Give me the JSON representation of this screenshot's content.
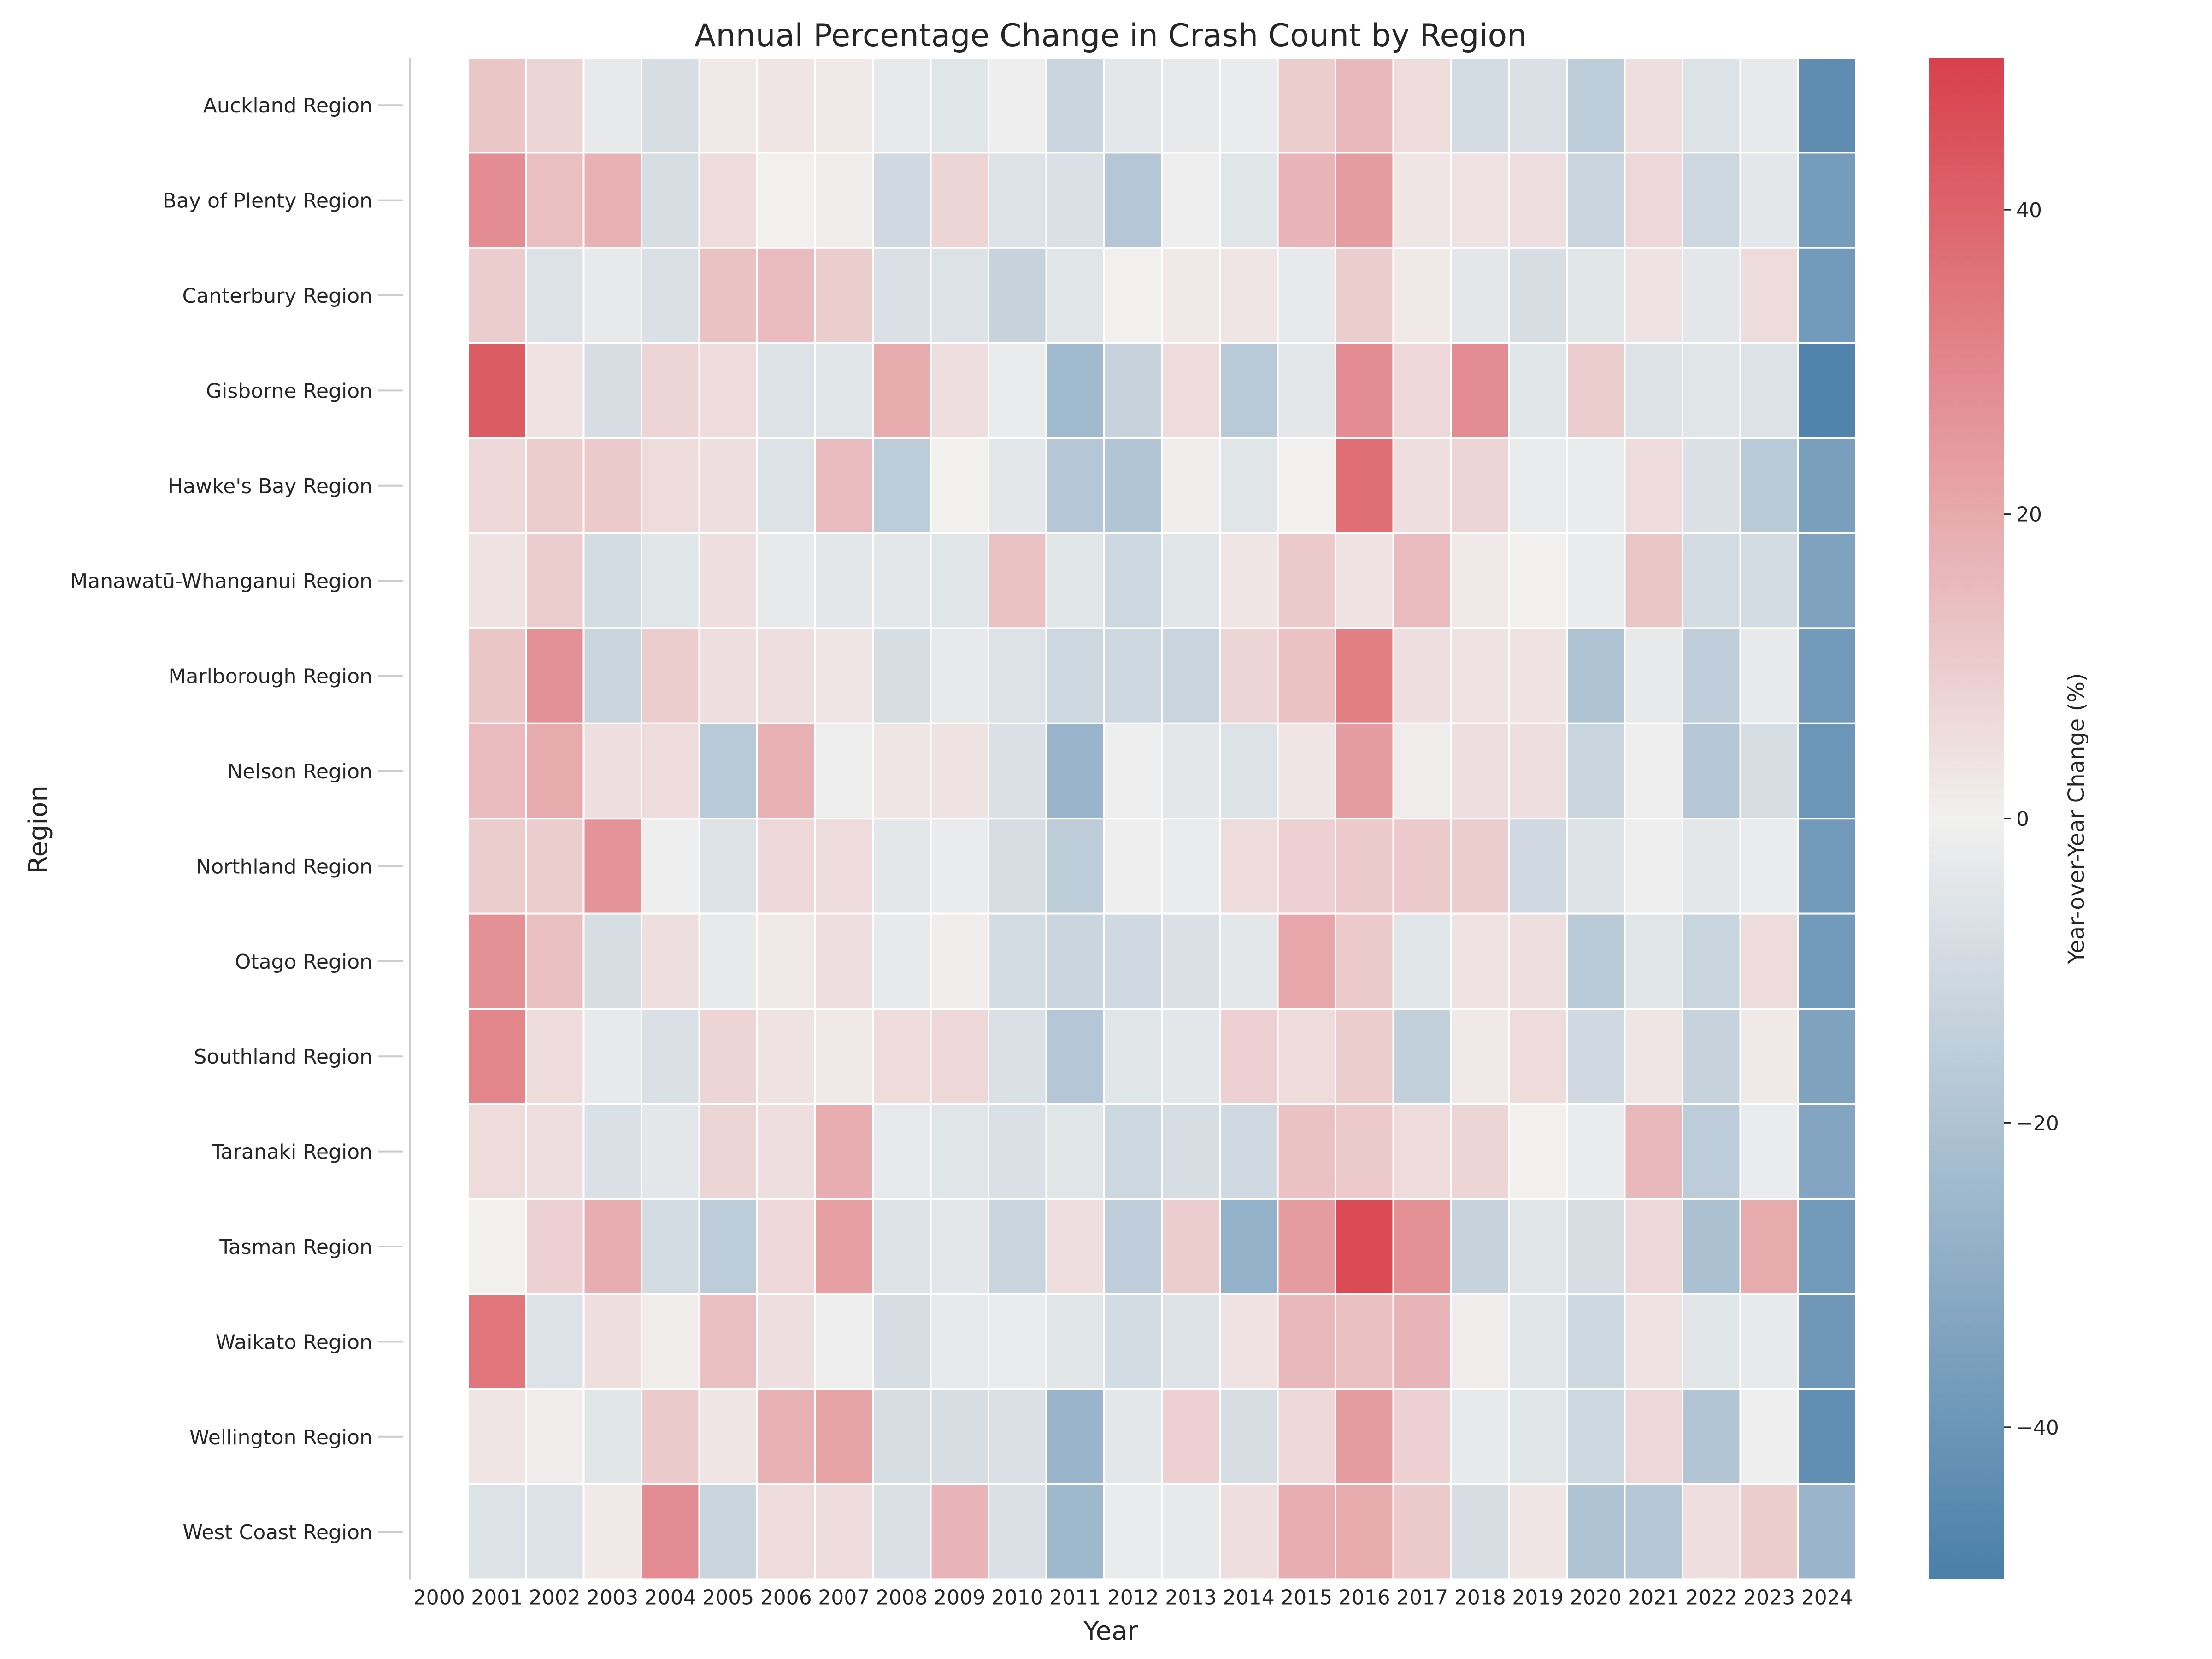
{
  "chart_data": {
    "type": "heatmap",
    "title": "Annual Percentage Change in Crash Count by Region",
    "xlabel": "Year",
    "ylabel": "Region",
    "x": [
      "2000",
      "2001",
      "2002",
      "2003",
      "2004",
      "2005",
      "2006",
      "2007",
      "2008",
      "2009",
      "2010",
      "2011",
      "2012",
      "2013",
      "2014",
      "2015",
      "2016",
      "2017",
      "2018",
      "2019",
      "2020",
      "2021",
      "2022",
      "2023",
      "2024"
    ],
    "y": [
      "Auckland Region",
      "Bay of Plenty Region",
      "Canterbury Region",
      "Gisborne Region",
      "Hawke's Bay Region",
      "Manawatū-Whanganui Region",
      "Marlborough Region",
      "Nelson Region",
      "Northland Region",
      "Otago Region",
      "Southland Region",
      "Taranaki Region",
      "Tasman Region",
      "Waikato Region",
      "Wellington Region",
      "West Coast Region"
    ],
    "values": [
      [
        null,
        12,
        8,
        -3,
        -8,
        2,
        3,
        2,
        -3,
        -5,
        -1,
        -12,
        -4,
        -3,
        -2,
        10,
        16,
        6,
        -9,
        -7,
        -16,
        5,
        -6,
        -3,
        -44
      ],
      [
        null,
        28,
        14,
        18,
        -8,
        6,
        0,
        1,
        -10,
        8,
        -6,
        -7,
        -18,
        -1,
        -5,
        17,
        24,
        3,
        4,
        5,
        -12,
        7,
        -11,
        -4,
        -37
      ],
      [
        null,
        10,
        -6,
        -3,
        -7,
        13,
        15,
        10,
        -7,
        -6,
        -13,
        -5,
        0,
        2,
        3,
        -3,
        10,
        2,
        -4,
        -8,
        -5,
        4,
        -4,
        6,
        -38
      ],
      [
        null,
        42,
        4,
        -8,
        8,
        6,
        -6,
        -5,
        20,
        5,
        -2,
        -24,
        -13,
        6,
        -17,
        -4,
        28,
        7,
        28,
        -5,
        10,
        -6,
        -5,
        -6,
        -48
      ],
      [
        null,
        7,
        10,
        11,
        6,
        5,
        -6,
        15,
        -16,
        0,
        -4,
        -18,
        -19,
        1,
        -5,
        0,
        37,
        5,
        8,
        -2,
        -2,
        6,
        -7,
        -17,
        -36
      ],
      [
        null,
        4,
        10,
        -9,
        -5,
        5,
        -3,
        -4,
        -4,
        -5,
        13,
        -5,
        -11,
        -5,
        3,
        11,
        4,
        15,
        2,
        0,
        -2,
        12,
        -9,
        -9,
        -34
      ],
      [
        null,
        12,
        27,
        -12,
        10,
        5,
        5,
        3,
        -8,
        -3,
        -6,
        -11,
        -11,
        -12,
        8,
        13,
        32,
        5,
        4,
        4,
        -20,
        -3,
        -15,
        -3,
        -38
      ],
      [
        null,
        15,
        20,
        5,
        6,
        -17,
        18,
        -1,
        3,
        4,
        -7,
        -26,
        -1,
        -4,
        -6,
        3,
        24,
        1,
        5,
        5,
        -12,
        -1,
        -18,
        -8,
        -40
      ],
      [
        null,
        10,
        10,
        26,
        -1,
        -6,
        7,
        6,
        -4,
        -2,
        -8,
        -16,
        -1,
        -2,
        6,
        9,
        11,
        11,
        10,
        -10,
        -6,
        -1,
        -4,
        -2,
        -38
      ],
      [
        null,
        27,
        14,
        -8,
        5,
        -3,
        2,
        5,
        -3,
        1,
        -9,
        -12,
        -10,
        -7,
        -4,
        21,
        11,
        -5,
        4,
        5,
        -17,
        -5,
        -12,
        6,
        -38
      ],
      [
        null,
        30,
        6,
        -3,
        -7,
        8,
        4,
        2,
        6,
        7,
        -7,
        -18,
        -5,
        -4,
        9,
        6,
        10,
        -14,
        2,
        6,
        -10,
        3,
        -13,
        2,
        -34
      ],
      [
        null,
        6,
        5,
        -7,
        -4,
        8,
        5,
        19,
        -3,
        -5,
        -7,
        -5,
        -11,
        -8,
        -10,
        13,
        11,
        6,
        8,
        0,
        -2,
        16,
        -16,
        -2,
        -33
      ],
      [
        null,
        0,
        9,
        19,
        -9,
        -16,
        7,
        23,
        -6,
        -4,
        -12,
        5,
        -15,
        10,
        -28,
        24,
        47,
        27,
        -13,
        -5,
        -8,
        7,
        -21,
        20,
        -38
      ],
      [
        null,
        35,
        -6,
        5,
        1,
        14,
        5,
        -1,
        -8,
        -3,
        -2,
        -5,
        -9,
        -6,
        4,
        16,
        14,
        17,
        1,
        -5,
        -11,
        4,
        -5,
        -3,
        -39
      ],
      [
        null,
        3,
        1,
        -5,
        11,
        3,
        18,
        22,
        -8,
        -8,
        -7,
        -26,
        -4,
        9,
        -8,
        7,
        24,
        9,
        -3,
        -5,
        -11,
        7,
        -19,
        -1,
        -43
      ],
      [
        null,
        -6,
        -6,
        2,
        28,
        -12,
        6,
        6,
        -7,
        17,
        -7,
        -25,
        -2,
        -3,
        5,
        19,
        20,
        11,
        -8,
        3,
        -20,
        -18,
        5,
        10,
        -26
      ]
    ],
    "colorbar": {
      "label": "Year-over-Year Change (%)",
      "vmin": -50,
      "vmax": 50,
      "ticks": [
        40,
        20,
        0,
        -20,
        -40
      ],
      "tick_labels": [
        "40",
        "20",
        "0",
        "−20",
        "−40"
      ],
      "low_color": "#4a7fa9",
      "mid_color": "#f1f0ef",
      "high_color": "#d8404a"
    },
    "grid": false
  }
}
